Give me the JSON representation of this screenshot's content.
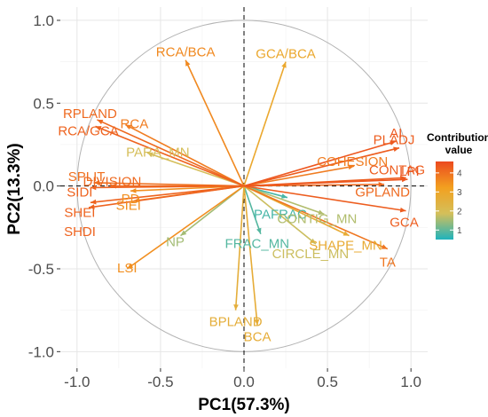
{
  "chart_data": {
    "type": "pca-biplot",
    "xlabel": "PC1(57.3%)",
    "ylabel": "PC2(13.3%)",
    "xlim": [
      -1.1,
      1.1
    ],
    "ylim": [
      -1.1,
      1.08
    ],
    "x_ticks": [
      -1.0,
      -0.5,
      0.0,
      0.5,
      1.0
    ],
    "x_tick_labels": [
      "-1.0",
      "-0.5",
      "0.0",
      "0.5",
      "1.0"
    ],
    "y_ticks": [
      -1.0,
      -0.5,
      0.0,
      0.5,
      1.0
    ],
    "y_tick_labels": [
      "-1.0",
      "-0.5",
      "0.0",
      "0.5",
      "1.0"
    ],
    "grid": true,
    "unit_circle": true,
    "reference_lines": "dashed at x=0 and y=0",
    "legend": {
      "title_lines": [
        "Contribution",
        "value"
      ],
      "ticks": [
        4,
        3,
        2,
        1
      ],
      "range": [
        0.5,
        4.6
      ],
      "colors": [
        "#1fb3bd",
        "#d4bf5a",
        "#f2a020",
        "#ec4a1f"
      ],
      "placement": "right"
    },
    "variables": [
      {
        "name": "AI",
        "x": 0.91,
        "y": 0.27,
        "contrib": 4.4
      },
      {
        "name": "PLADJ",
        "x": 0.93,
        "y": 0.23,
        "contrib": 4.3
      },
      {
        "name": "CONTAG",
        "x": 0.97,
        "y": 0.05,
        "contrib": 4.3
      },
      {
        "name": "LPI",
        "x": 0.98,
        "y": 0.04,
        "contrib": 4.4
      },
      {
        "name": "COHESION",
        "x": 0.66,
        "y": 0.12,
        "contrib": 3.8
      },
      {
        "name": "GPLAND",
        "x": 0.84,
        "y": 0.01,
        "contrib": 4.1
      },
      {
        "name": "GCA",
        "x": 0.97,
        "y": -0.15,
        "contrib": 4.3
      },
      {
        "name": "SHAPE_MN",
        "x": 0.63,
        "y": -0.3,
        "contrib": 2.8
      },
      {
        "name": "TA",
        "x": 0.86,
        "y": -0.38,
        "contrib": 3.9
      },
      {
        "name": "CONTIG_MN",
        "x": 0.48,
        "y": -0.17,
        "contrib": 1.6
      },
      {
        "name": "CIRCLE_MN",
        "x": 0.43,
        "y": -0.35,
        "contrib": 1.8
      },
      {
        "name": "PAFRAC",
        "x": 0.26,
        "y": -0.07,
        "contrib": 0.8
      },
      {
        "name": "FRAC_MN",
        "x": 0.1,
        "y": -0.29,
        "contrib": 0.9
      },
      {
        "name": "GCA/BCA",
        "x": 0.25,
        "y": 0.75,
        "contrib": 2.9
      },
      {
        "name": "RCA/BCA",
        "x": -0.35,
        "y": 0.76,
        "contrib": 3.6
      },
      {
        "name": "RPLAND",
        "x": -0.88,
        "y": 0.4,
        "contrib": 4.1
      },
      {
        "name": "RCA",
        "x": -0.71,
        "y": 0.37,
        "contrib": 3.8
      },
      {
        "name": "RCA/GCA",
        "x": -0.89,
        "y": 0.36,
        "contrib": 4.2
      },
      {
        "name": "PARA_MN",
        "x": -0.58,
        "y": 0.2,
        "contrib": 1.9
      },
      {
        "name": "SPLIT",
        "x": -0.9,
        "y": 0.02,
        "contrib": 4.0
      },
      {
        "name": "DIVISION",
        "x": -0.8,
        "y": 0.0,
        "contrib": 4.1
      },
      {
        "name": "SIDI",
        "x": -0.92,
        "y": -0.01,
        "contrib": 4.2
      },
      {
        "name": "PD",
        "x": -0.68,
        "y": -0.03,
        "contrib": 3.5
      },
      {
        "name": "SHEI",
        "x": -0.92,
        "y": -0.1,
        "contrib": 4.2
      },
      {
        "name": "SIEI",
        "x": -0.66,
        "y": -0.09,
        "contrib": 3.5
      },
      {
        "name": "SHDI",
        "x": -0.93,
        "y": -0.13,
        "contrib": 4.2
      },
      {
        "name": "NP",
        "x": -0.38,
        "y": -0.3,
        "contrib": 1.5
      },
      {
        "name": "LSI",
        "x": -0.7,
        "y": -0.5,
        "contrib": 3.5
      },
      {
        "name": "BPLAND",
        "x": -0.05,
        "y": -0.75,
        "contrib": 2.6
      },
      {
        "name": "BCA",
        "x": 0.08,
        "y": -0.84,
        "contrib": 2.7
      }
    ]
  }
}
